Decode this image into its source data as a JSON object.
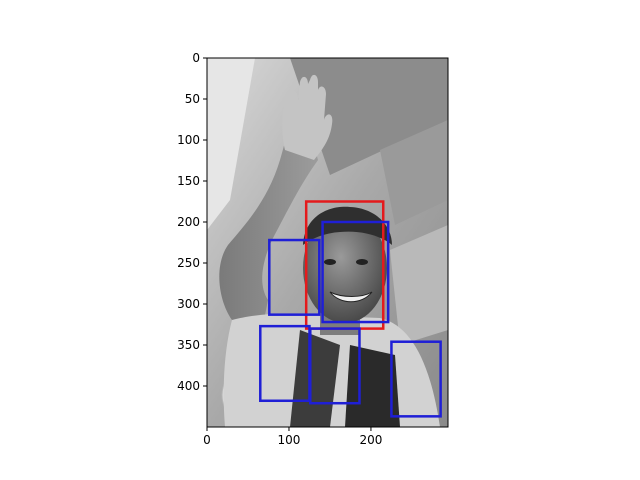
{
  "chart_data": {
    "type": "image",
    "title": "",
    "xlabel": "",
    "ylabel": "",
    "xlim": [
      0,
      294
    ],
    "ylim": [
      450,
      0
    ],
    "x_ticks": [
      {
        "value": 0,
        "label": "0"
      },
      {
        "value": 100,
        "label": "100"
      },
      {
        "value": 200,
        "label": "200"
      }
    ],
    "y_ticks": [
      {
        "value": 0,
        "label": "0"
      },
      {
        "value": 50,
        "label": "50"
      },
      {
        "value": 100,
        "label": "100"
      },
      {
        "value": 150,
        "label": "150"
      },
      {
        "value": 200,
        "label": "200"
      },
      {
        "value": 250,
        "label": "250"
      },
      {
        "value": 300,
        "label": "300"
      },
      {
        "value": 350,
        "label": "350"
      },
      {
        "value": 400,
        "label": "400"
      }
    ],
    "image": "grayscale photo of a smiling cyclist in a cap waving his raised right hand",
    "boxes": [
      {
        "label": "red",
        "color": "#e41a1c",
        "x0": 121,
        "y0": 175,
        "x1": 215,
        "y1": 330
      },
      {
        "label": "blue",
        "color": "#1f1fd6",
        "x0": 141,
        "y0": 200,
        "x1": 221,
        "y1": 322
      },
      {
        "label": "blue",
        "color": "#1f1fd6",
        "x0": 76,
        "y0": 222,
        "x1": 137,
        "y1": 313
      },
      {
        "label": "blue",
        "color": "#1f1fd6",
        "x0": 65,
        "y0": 327,
        "x1": 125,
        "y1": 418
      },
      {
        "label": "blue",
        "color": "#1f1fd6",
        "x0": 126,
        "y0": 330,
        "x1": 186,
        "y1": 421
      },
      {
        "label": "blue",
        "color": "#1f1fd6",
        "x0": 225,
        "y0": 346,
        "x1": 285,
        "y1": 437
      }
    ]
  }
}
